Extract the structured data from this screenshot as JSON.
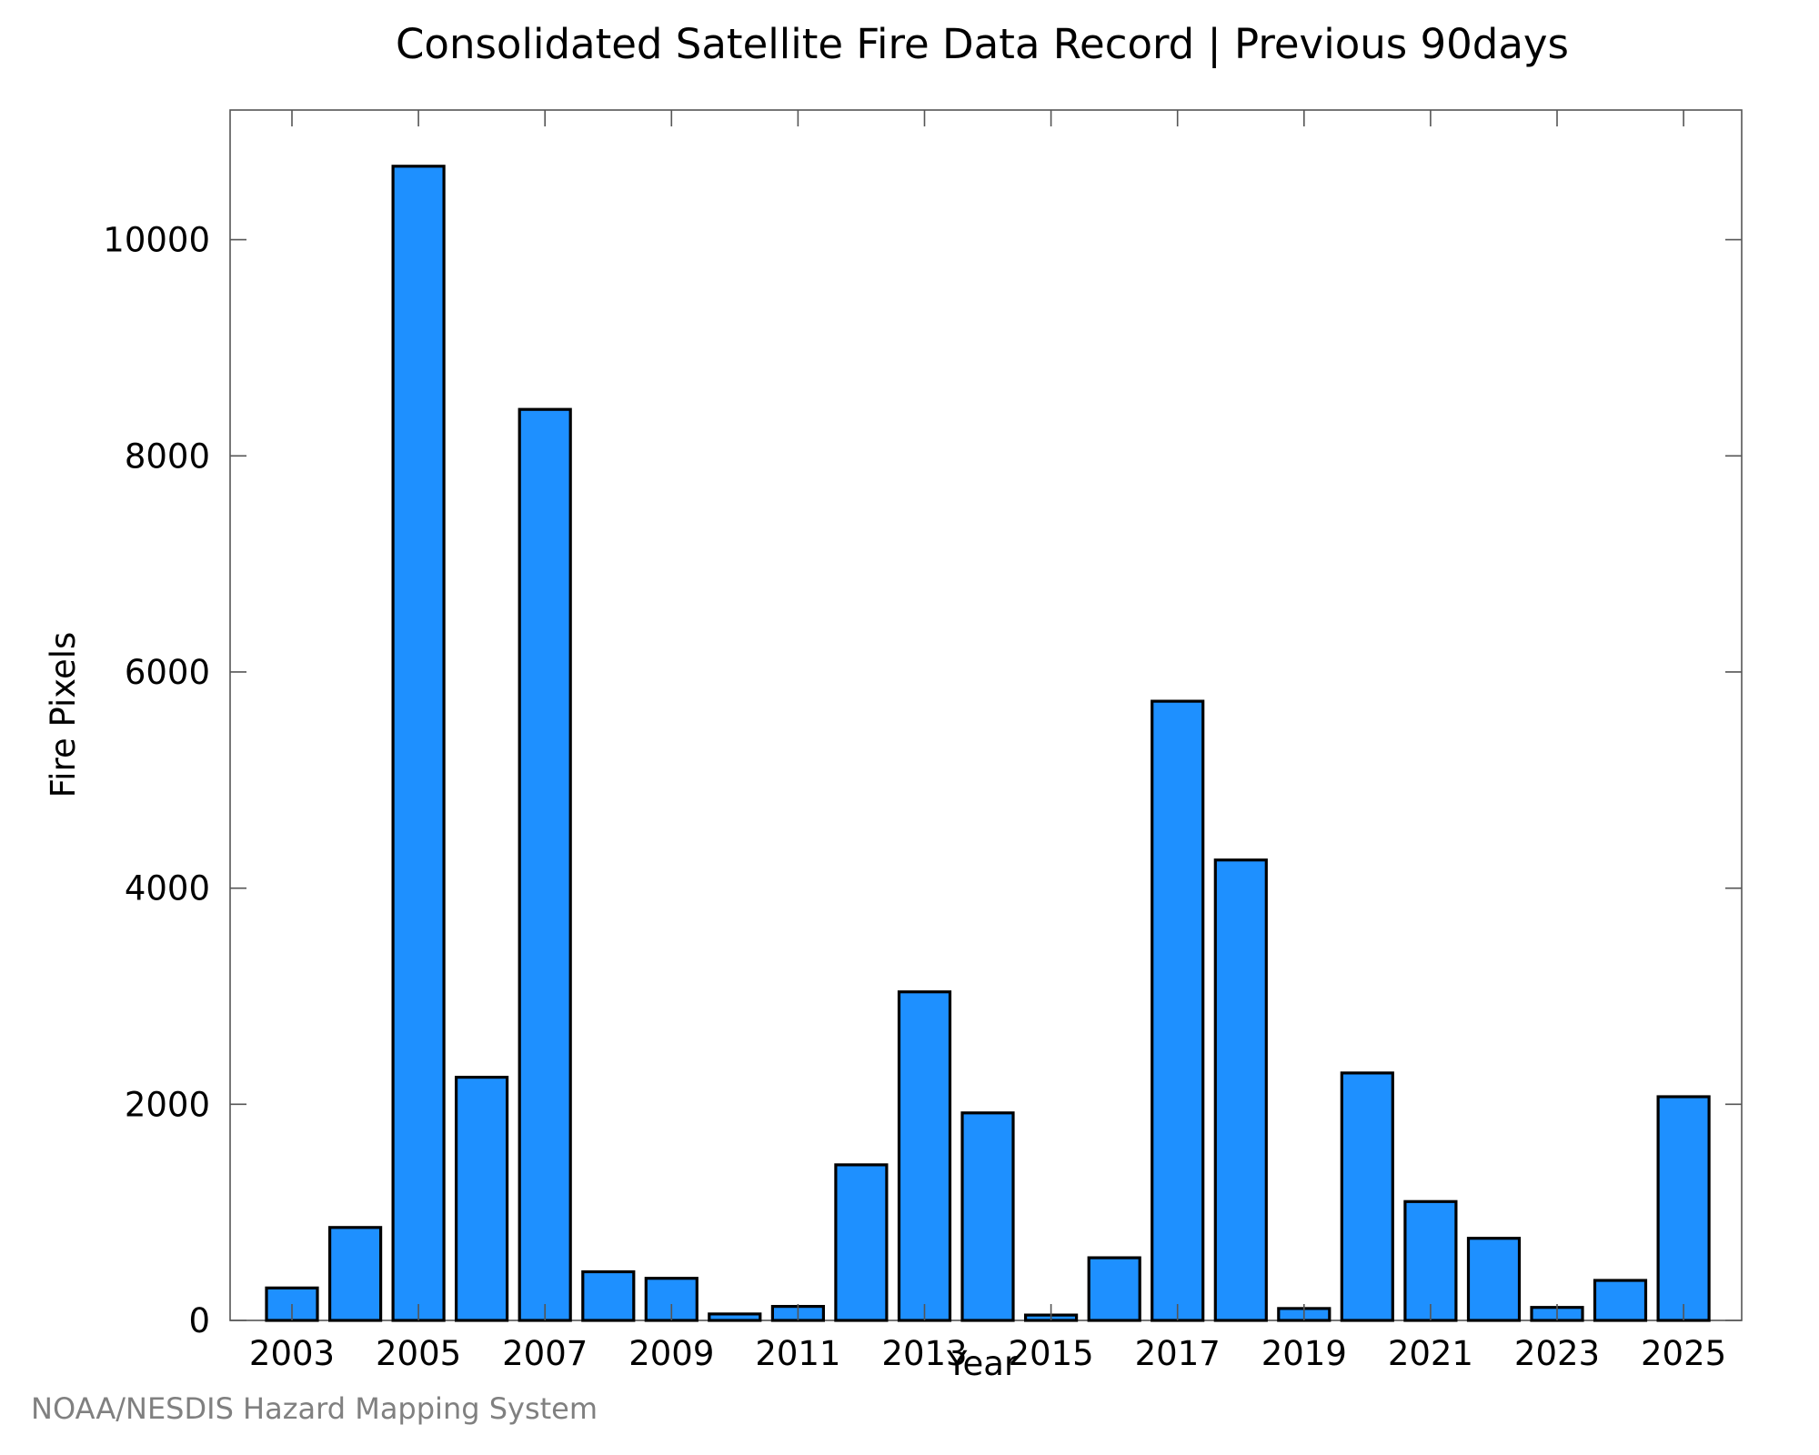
{
  "chart_data": {
    "type": "bar",
    "title": "Consolidated Satellite Fire Data Record | Previous 90days",
    "xlabel": "Year",
    "ylabel": "Fire Pixels",
    "ylim": [
      0,
      11200
    ],
    "yticks": [
      0,
      2000,
      4000,
      6000,
      8000,
      10000
    ],
    "xtick_labels": [
      "2003",
      "2005",
      "2007",
      "2009",
      "2011",
      "2013",
      "2015",
      "2017",
      "2019",
      "2021",
      "2023",
      "2025"
    ],
    "categories": [
      "2003",
      "2004",
      "2005",
      "2006",
      "2007",
      "2008",
      "2009",
      "2010",
      "2011",
      "2012",
      "2013",
      "2014",
      "2015",
      "2016",
      "2017",
      "2018",
      "2019",
      "2020",
      "2021",
      "2022",
      "2023",
      "2024",
      "2025"
    ],
    "values": [
      300,
      860,
      10680,
      2250,
      8430,
      450,
      390,
      60,
      130,
      1440,
      3040,
      1920,
      50,
      580,
      5730,
      4260,
      110,
      2290,
      1100,
      760,
      120,
      370,
      2070
    ],
    "bar_color": "#1e90ff",
    "grid": false,
    "legend": "none"
  },
  "footer": {
    "credit": "NOAA/NESDIS Hazard Mapping System"
  }
}
